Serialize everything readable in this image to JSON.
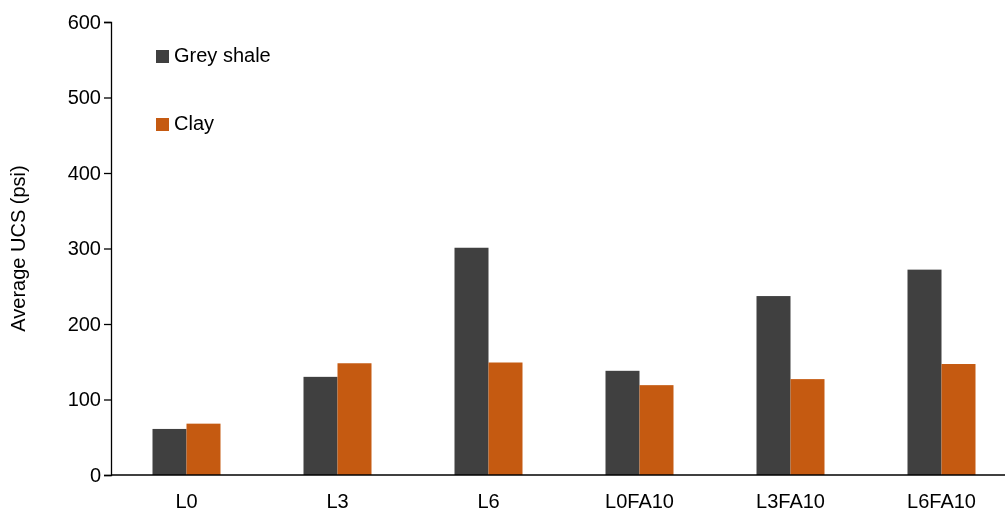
{
  "chart_data": {
    "type": "bar",
    "ylabel": "Average UCS (psi)",
    "categories": [
      "L0",
      "L3",
      "L6",
      "L0FA10",
      "L3FA10",
      "L6FA10"
    ],
    "series": [
      {
        "name": "Grey shale",
        "color": "#404040",
        "values": [
          61,
          130,
          301,
          138,
          237,
          272
        ]
      },
      {
        "name": "Clay",
        "color": "#c55a11",
        "values": [
          68,
          148,
          149,
          119,
          127,
          147
        ]
      }
    ],
    "ylim": [
      0,
      600
    ],
    "yticks": [
      0,
      100,
      200,
      300,
      400,
      500,
      600
    ],
    "grid": false,
    "legend": "top left"
  }
}
